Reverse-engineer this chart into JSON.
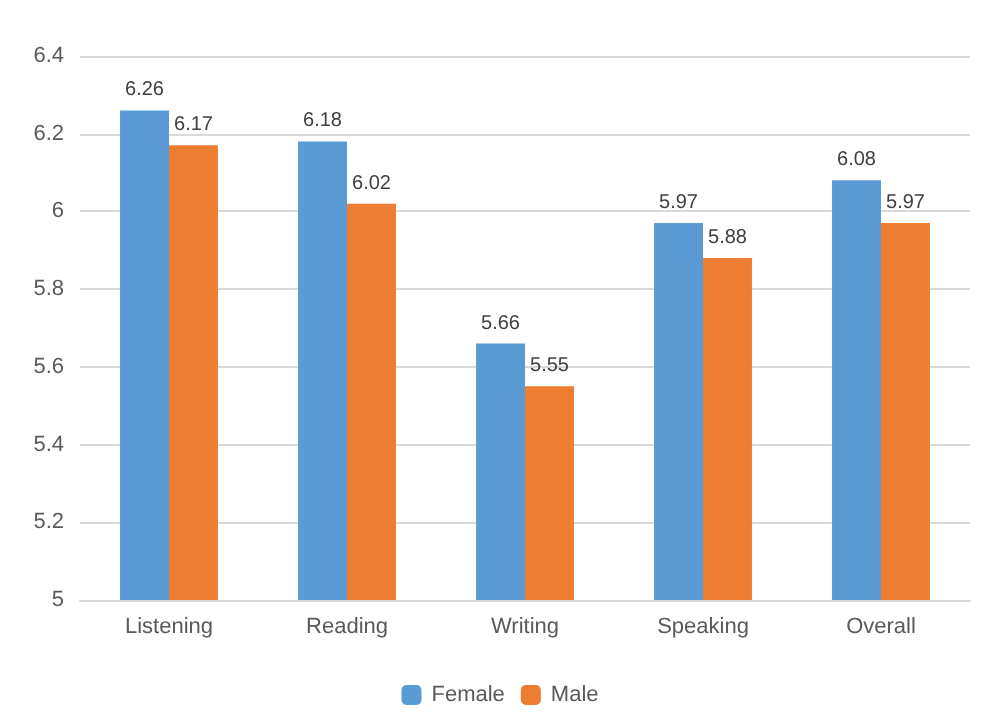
{
  "chart_data": {
    "type": "bar",
    "categories": [
      "Listening",
      "Reading",
      "Writing",
      "Speaking",
      "Overall"
    ],
    "series": [
      {
        "name": "Female",
        "color": "#5b9bd5",
        "values": [
          6.26,
          6.18,
          5.66,
          5.97,
          6.08
        ]
      },
      {
        "name": "Male",
        "color": "#ed7d31",
        "values": [
          6.17,
          6.02,
          5.55,
          5.88,
          5.97
        ]
      }
    ],
    "ylim": [
      5,
      6.4
    ],
    "yticks": [
      5,
      5.2,
      5.4,
      5.6,
      5.8,
      6,
      6.2,
      6.4
    ],
    "grid": "y",
    "legend": "bottom",
    "data_labels": true
  }
}
